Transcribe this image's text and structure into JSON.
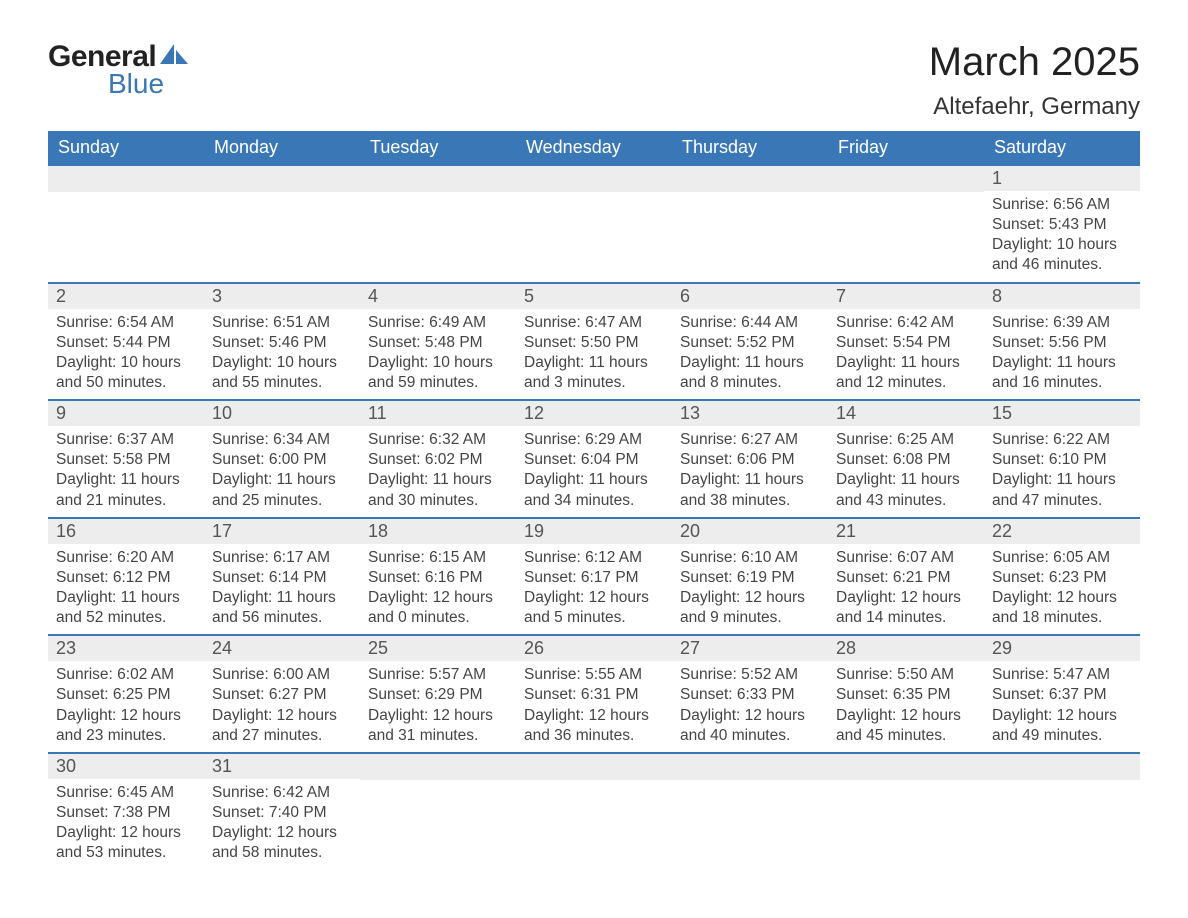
{
  "logo": {
    "text1": "General",
    "text2": "Blue",
    "color1": "#222222",
    "color2": "#3a77b6"
  },
  "title": "March 2025",
  "location": "Altefaehr, Germany",
  "title_fontsize": 40,
  "location_fontsize": 24,
  "header_bg": "#3a77b6",
  "header_text_color": "#ffffff",
  "daynum_bg": "#ededed",
  "row_border_color": "#3a77b6",
  "text_color": "#444444",
  "body_fontsize": 15.5,
  "weekdays": [
    "Sunday",
    "Monday",
    "Tuesday",
    "Wednesday",
    "Thursday",
    "Friday",
    "Saturday"
  ],
  "weeks": [
    [
      {
        "empty": true
      },
      {
        "empty": true
      },
      {
        "empty": true
      },
      {
        "empty": true
      },
      {
        "empty": true
      },
      {
        "empty": true
      },
      {
        "day": 1,
        "sunrise": "6:56 AM",
        "sunset": "5:43 PM",
        "daylight": "10 hours and 46 minutes."
      }
    ],
    [
      {
        "day": 2,
        "sunrise": "6:54 AM",
        "sunset": "5:44 PM",
        "daylight": "10 hours and 50 minutes."
      },
      {
        "day": 3,
        "sunrise": "6:51 AM",
        "sunset": "5:46 PM",
        "daylight": "10 hours and 55 minutes."
      },
      {
        "day": 4,
        "sunrise": "6:49 AM",
        "sunset": "5:48 PM",
        "daylight": "10 hours and 59 minutes."
      },
      {
        "day": 5,
        "sunrise": "6:47 AM",
        "sunset": "5:50 PM",
        "daylight": "11 hours and 3 minutes."
      },
      {
        "day": 6,
        "sunrise": "6:44 AM",
        "sunset": "5:52 PM",
        "daylight": "11 hours and 8 minutes."
      },
      {
        "day": 7,
        "sunrise": "6:42 AM",
        "sunset": "5:54 PM",
        "daylight": "11 hours and 12 minutes."
      },
      {
        "day": 8,
        "sunrise": "6:39 AM",
        "sunset": "5:56 PM",
        "daylight": "11 hours and 16 minutes."
      }
    ],
    [
      {
        "day": 9,
        "sunrise": "6:37 AM",
        "sunset": "5:58 PM",
        "daylight": "11 hours and 21 minutes."
      },
      {
        "day": 10,
        "sunrise": "6:34 AM",
        "sunset": "6:00 PM",
        "daylight": "11 hours and 25 minutes."
      },
      {
        "day": 11,
        "sunrise": "6:32 AM",
        "sunset": "6:02 PM",
        "daylight": "11 hours and 30 minutes."
      },
      {
        "day": 12,
        "sunrise": "6:29 AM",
        "sunset": "6:04 PM",
        "daylight": "11 hours and 34 minutes."
      },
      {
        "day": 13,
        "sunrise": "6:27 AM",
        "sunset": "6:06 PM",
        "daylight": "11 hours and 38 minutes."
      },
      {
        "day": 14,
        "sunrise": "6:25 AM",
        "sunset": "6:08 PM",
        "daylight": "11 hours and 43 minutes."
      },
      {
        "day": 15,
        "sunrise": "6:22 AM",
        "sunset": "6:10 PM",
        "daylight": "11 hours and 47 minutes."
      }
    ],
    [
      {
        "day": 16,
        "sunrise": "6:20 AM",
        "sunset": "6:12 PM",
        "daylight": "11 hours and 52 minutes."
      },
      {
        "day": 17,
        "sunrise": "6:17 AM",
        "sunset": "6:14 PM",
        "daylight": "11 hours and 56 minutes."
      },
      {
        "day": 18,
        "sunrise": "6:15 AM",
        "sunset": "6:16 PM",
        "daylight": "12 hours and 0 minutes."
      },
      {
        "day": 19,
        "sunrise": "6:12 AM",
        "sunset": "6:17 PM",
        "daylight": "12 hours and 5 minutes."
      },
      {
        "day": 20,
        "sunrise": "6:10 AM",
        "sunset": "6:19 PM",
        "daylight": "12 hours and 9 minutes."
      },
      {
        "day": 21,
        "sunrise": "6:07 AM",
        "sunset": "6:21 PM",
        "daylight": "12 hours and 14 minutes."
      },
      {
        "day": 22,
        "sunrise": "6:05 AM",
        "sunset": "6:23 PM",
        "daylight": "12 hours and 18 minutes."
      }
    ],
    [
      {
        "day": 23,
        "sunrise": "6:02 AM",
        "sunset": "6:25 PM",
        "daylight": "12 hours and 23 minutes."
      },
      {
        "day": 24,
        "sunrise": "6:00 AM",
        "sunset": "6:27 PM",
        "daylight": "12 hours and 27 minutes."
      },
      {
        "day": 25,
        "sunrise": "5:57 AM",
        "sunset": "6:29 PM",
        "daylight": "12 hours and 31 minutes."
      },
      {
        "day": 26,
        "sunrise": "5:55 AM",
        "sunset": "6:31 PM",
        "daylight": "12 hours and 36 minutes."
      },
      {
        "day": 27,
        "sunrise": "5:52 AM",
        "sunset": "6:33 PM",
        "daylight": "12 hours and 40 minutes."
      },
      {
        "day": 28,
        "sunrise": "5:50 AM",
        "sunset": "6:35 PM",
        "daylight": "12 hours and 45 minutes."
      },
      {
        "day": 29,
        "sunrise": "5:47 AM",
        "sunset": "6:37 PM",
        "daylight": "12 hours and 49 minutes."
      }
    ],
    [
      {
        "day": 30,
        "sunrise": "6:45 AM",
        "sunset": "7:38 PM",
        "daylight": "12 hours and 53 minutes."
      },
      {
        "day": 31,
        "sunrise": "6:42 AM",
        "sunset": "7:40 PM",
        "daylight": "12 hours and 58 minutes."
      },
      {
        "empty": true
      },
      {
        "empty": true
      },
      {
        "empty": true
      },
      {
        "empty": true
      },
      {
        "empty": true
      }
    ]
  ],
  "labels": {
    "sunrise": "Sunrise: ",
    "sunset": "Sunset: ",
    "daylight": "Daylight: "
  }
}
